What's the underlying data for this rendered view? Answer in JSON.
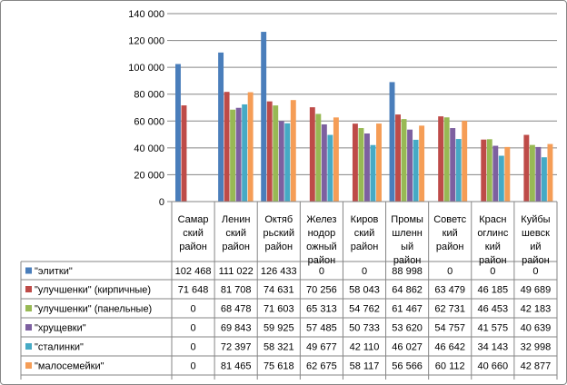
{
  "chart_data": {
    "type": "bar",
    "categories": [
      "Самарский район",
      "Ленинский район",
      "Октябрьский район",
      "Железнодорожный район",
      "Кировский район",
      "Промышленный район",
      "Советский район",
      "Красноглинский район",
      "Куйбышевский район"
    ],
    "category_lines": [
      [
        "Самар",
        "ский",
        "район"
      ],
      [
        "Ленин",
        "ский",
        "район"
      ],
      [
        "Октяб",
        "рьский",
        "район"
      ],
      [
        "Желез",
        "нодор",
        "ожный",
        "район"
      ],
      [
        "Киров",
        "ский",
        "район"
      ],
      [
        "Промы",
        "шленн",
        "ый",
        "район"
      ],
      [
        "Советс",
        "кий",
        "район"
      ],
      [
        "Красн",
        "оглинс",
        "кий",
        "район"
      ],
      [
        "Куйбы",
        "шевск",
        "ий",
        "район"
      ]
    ],
    "ylim": [
      0,
      140000
    ],
    "yticks": [
      0,
      20000,
      40000,
      60000,
      80000,
      100000,
      120000,
      140000
    ],
    "ytick_labels": [
      "0",
      "20 000",
      "40 000",
      "60 000",
      "80 000",
      "100 000",
      "120 000",
      "140 000"
    ],
    "grid": true,
    "legend": "data-table",
    "series": [
      {
        "name": "\"элитки\"",
        "color": "#4a7ebb",
        "values": [
          102468,
          111022,
          126433,
          0,
          0,
          88998,
          0,
          0,
          0
        ],
        "labels": [
          "102 468",
          "111 022",
          "126 433",
          "0",
          "0",
          "88 998",
          "0",
          "0",
          "0"
        ]
      },
      {
        "name": "\"улучшенки\"  (кирпичные)",
        "color": "#be4b48",
        "values": [
          71648,
          81708,
          74631,
          70256,
          58043,
          64862,
          63479,
          46185,
          49689
        ],
        "labels": [
          "71 648",
          "81 708",
          "74 631",
          "70 256",
          "58 043",
          "64 862",
          "63 479",
          "46 185",
          "49 689"
        ]
      },
      {
        "name": "\"улучшенки\"  (панельные)",
        "color": "#98b954",
        "values": [
          0,
          68478,
          71603,
          65313,
          54762,
          61467,
          62731,
          46453,
          42183
        ],
        "labels": [
          "0",
          "68 478",
          "71 603",
          "65 313",
          "54 762",
          "61 467",
          "62 731",
          "46 453",
          "42 183"
        ]
      },
      {
        "name": "\"хрущевки\"",
        "color": "#7d60a0",
        "values": [
          0,
          69843,
          59925,
          57485,
          50733,
          53620,
          54757,
          41575,
          40639
        ],
        "labels": [
          "0",
          "69 843",
          "59 925",
          "57 485",
          "50 733",
          "53 620",
          "54 757",
          "41 575",
          "40 639"
        ]
      },
      {
        "name": "\"сталинки\"",
        "color": "#46aac5",
        "values": [
          0,
          72397,
          58321,
          49677,
          42110,
          46027,
          46642,
          34143,
          32998
        ],
        "labels": [
          "0",
          "72 397",
          "58 321",
          "49 677",
          "42 110",
          "46 027",
          "46 642",
          "34 143",
          "32 998"
        ]
      },
      {
        "name": "\"малосемейки\"",
        "color": "#f59d56",
        "values": [
          0,
          81465,
          75618,
          62675,
          58117,
          56566,
          60112,
          40660,
          42877
        ],
        "labels": [
          "0",
          "81 465",
          "75 618",
          "62 675",
          "58 117",
          "56 566",
          "60 112",
          "40 660",
          "42 877"
        ]
      }
    ]
  }
}
